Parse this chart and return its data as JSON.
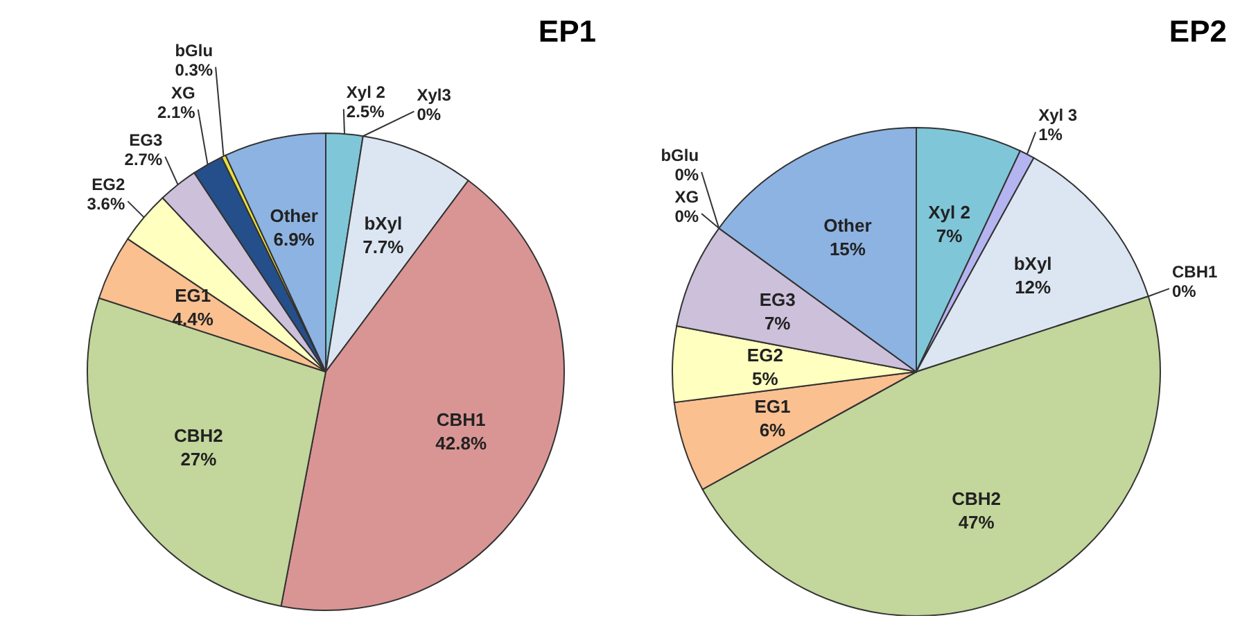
{
  "chart_data": [
    {
      "type": "pie",
      "title": "EP1",
      "categories": [
        "Xyl 2",
        "Xyl3",
        "bXyl",
        "CBH1",
        "CBH2",
        "EG1",
        "EG2",
        "EG3",
        "XG",
        "bGlu",
        "Other"
      ],
      "values": [
        2.5,
        0,
        7.7,
        42.8,
        27,
        4.4,
        3.6,
        2.7,
        2.1,
        0.3,
        6.9
      ],
      "colors": [
        "#7fc6d8",
        "#b4b4f0",
        "#dce6f2",
        "#d99594",
        "#c3d69b",
        "#fac090",
        "#ffffc0",
        "#ccc0da",
        "#254f8a",
        "#e8e040",
        "#8db3e2"
      ],
      "value_labels": [
        "2.5%",
        "0%",
        "7.7%",
        "42.8%",
        "27%",
        "4.4%",
        "3.6%",
        "2.7%",
        "2.1%",
        "0.3%",
        "6.9%"
      ]
    },
    {
      "type": "pie",
      "title": "EP2",
      "categories": [
        "Xyl 2",
        "Xyl 3",
        "bXyl",
        "CBH1",
        "CBH2",
        "EG1",
        "EG2",
        "EG3",
        "XG",
        "bGlu",
        "Other"
      ],
      "values": [
        7,
        1,
        12,
        0,
        47,
        6,
        5,
        7,
        0,
        0,
        15
      ],
      "colors": [
        "#7fc6d8",
        "#b4b4f0",
        "#dce6f2",
        "#d99594",
        "#c3d69b",
        "#fac090",
        "#ffffc0",
        "#ccc0da",
        "#254f8a",
        "#e8e040",
        "#8db3e2"
      ],
      "value_labels": [
        "7%",
        "1%",
        "12%",
        "0%",
        "47%",
        "6%",
        "5%",
        "7%",
        "0%",
        "0%",
        "15%"
      ]
    }
  ]
}
